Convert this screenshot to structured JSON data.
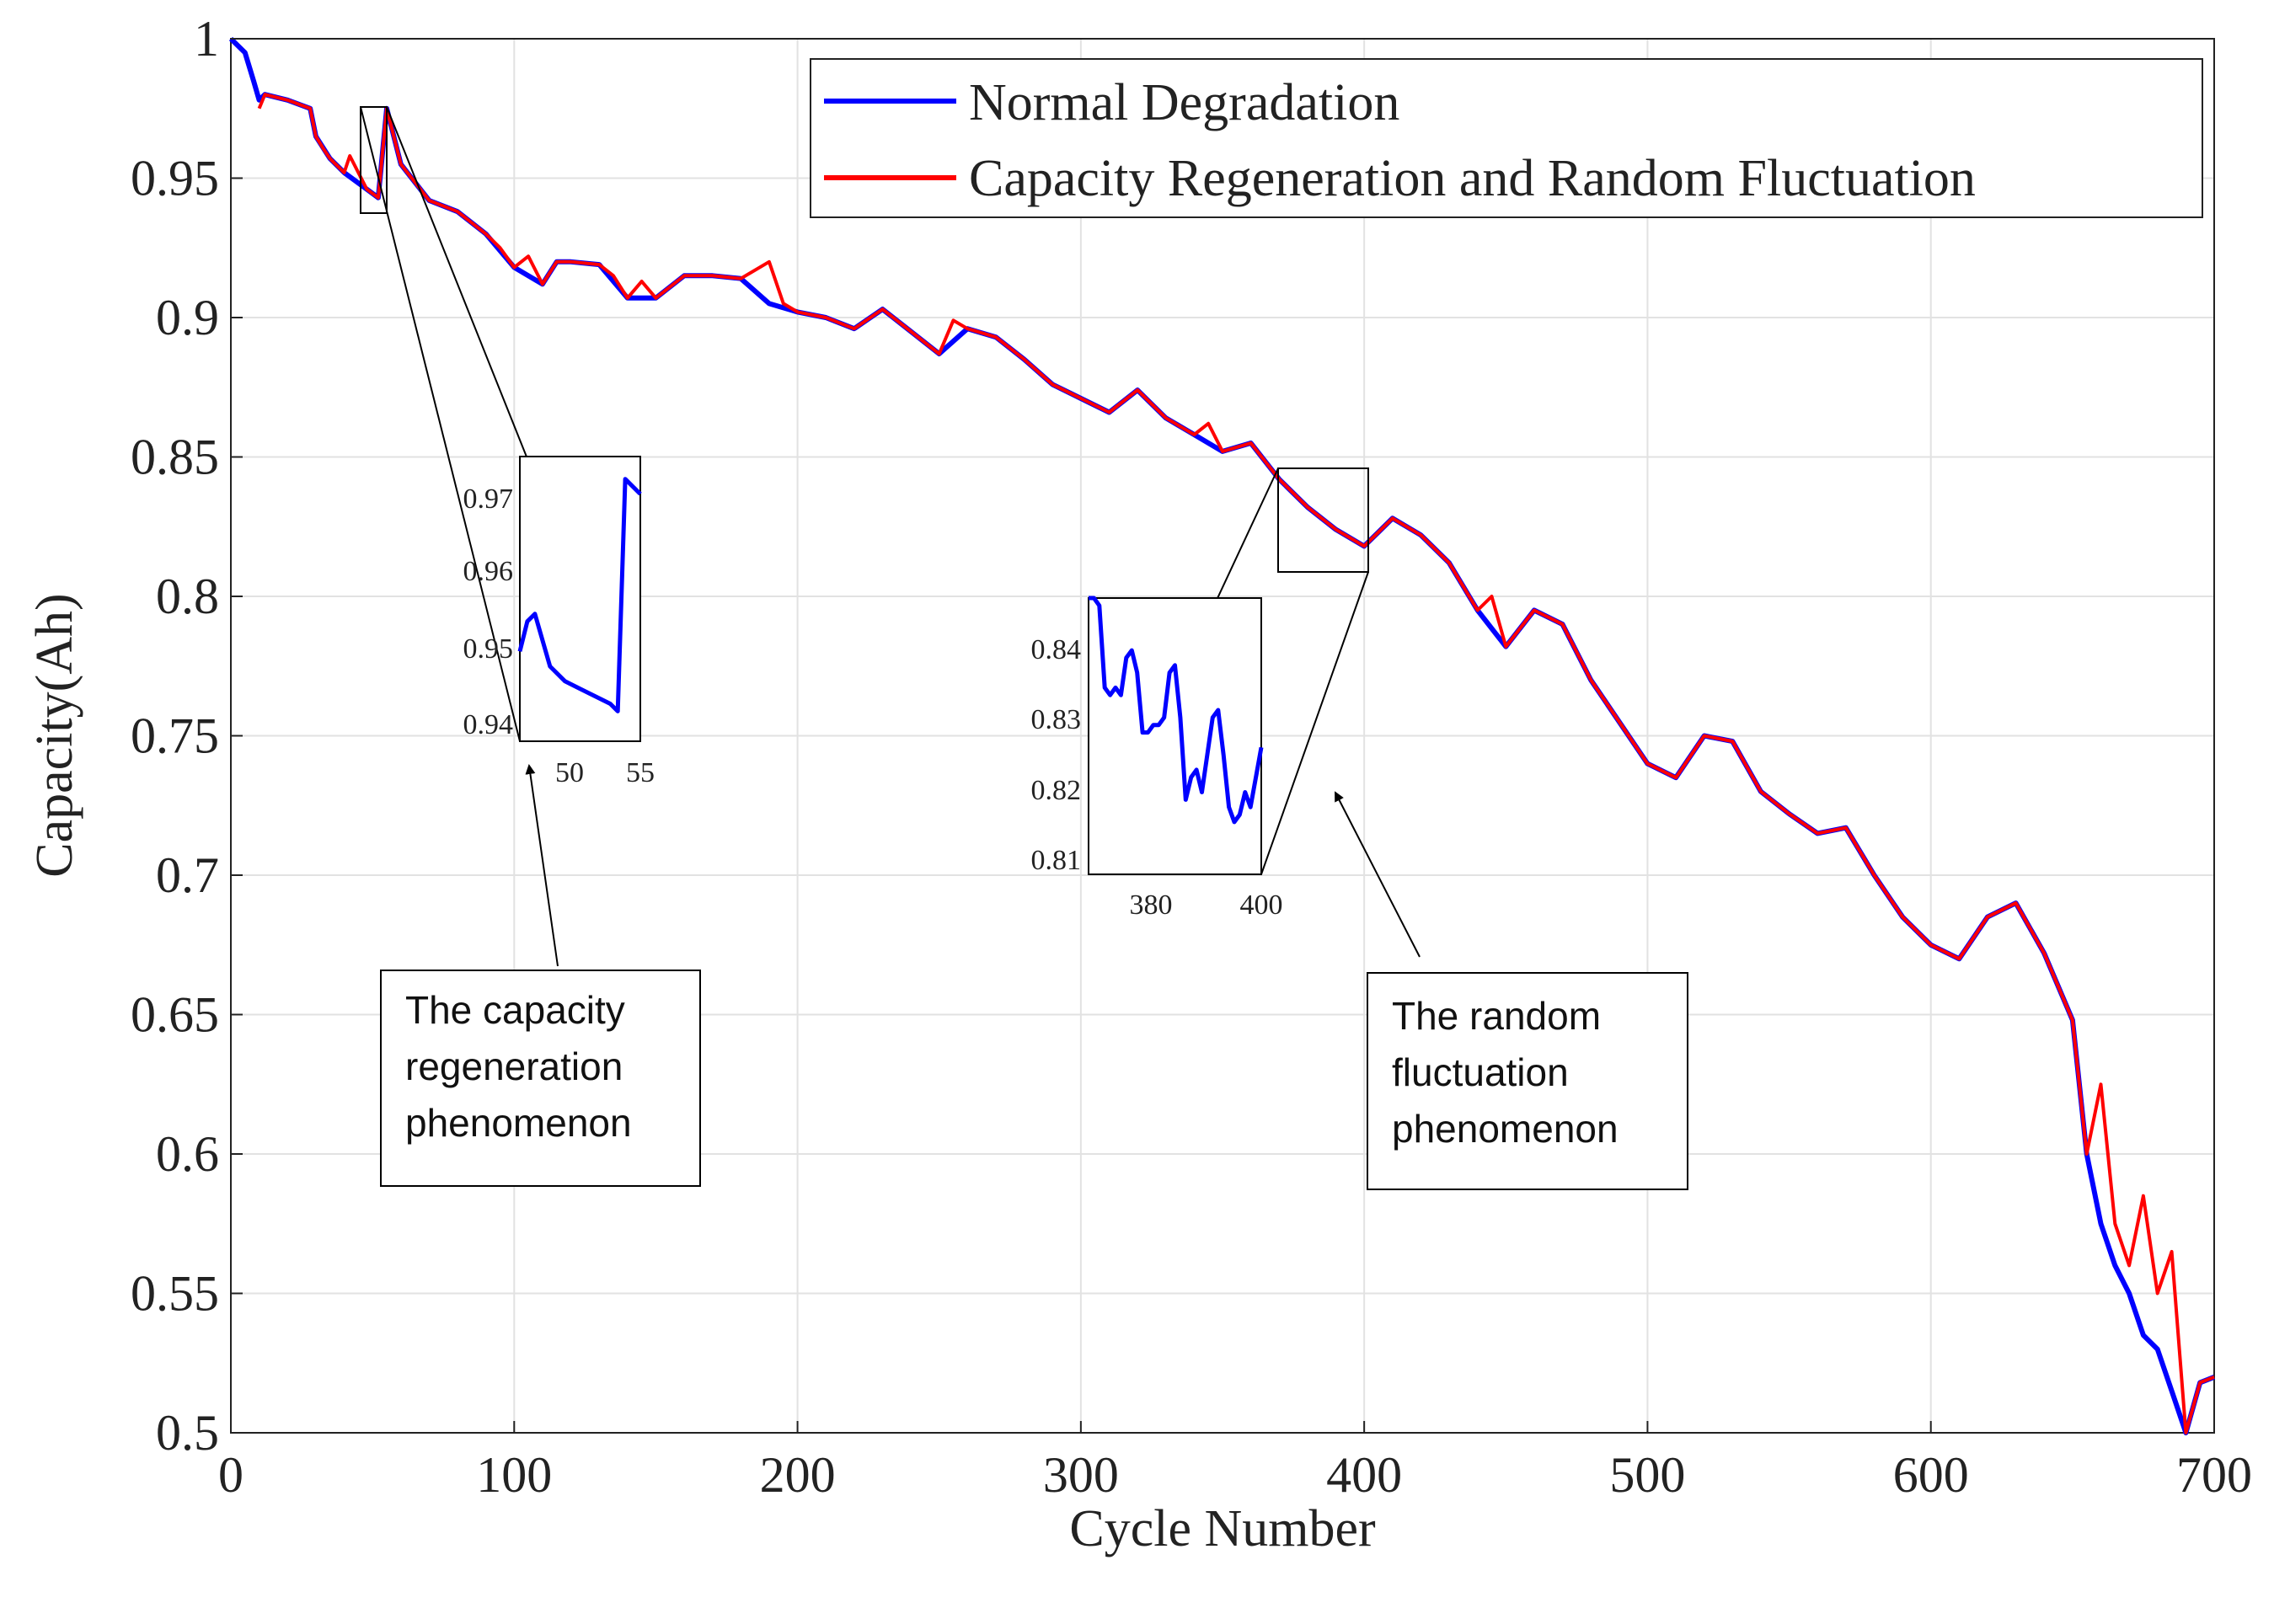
{
  "chart_data": {
    "type": "line",
    "title": "",
    "xlabel": "Cycle Number",
    "ylabel": "Capacity(Ah)",
    "xlim": [
      0,
      700
    ],
    "ylim": [
      0.5,
      1.0
    ],
    "grid": true,
    "legend_position": "top-right",
    "x_ticks": [
      0,
      100,
      200,
      300,
      400,
      500,
      600,
      700
    ],
    "y_ticks": [
      0.5,
      0.55,
      0.6,
      0.65,
      0.7,
      0.75,
      0.8,
      0.85,
      0.9,
      0.95,
      1.0
    ],
    "x_tick_labels": [
      "0",
      "100",
      "200",
      "300",
      "400",
      "500",
      "600",
      "700"
    ],
    "y_tick_labels": [
      "0.5",
      "0.55",
      "0.6",
      "0.65",
      "0.7",
      "0.75",
      "0.8",
      "0.85",
      "0.9",
      "0.95",
      "1"
    ],
    "series": [
      {
        "name": "Normal Degradation",
        "color": "#0000ff",
        "x": [
          0,
          5,
          8,
          10,
          12,
          20,
          28,
          30,
          35,
          40,
          48,
          52,
          55,
          60,
          70,
          80,
          90,
          100,
          110,
          115,
          120,
          130,
          140,
          150,
          160,
          170,
          180,
          190,
          200,
          210,
          220,
          230,
          240,
          250,
          260,
          270,
          280,
          290,
          300,
          310,
          320,
          330,
          340,
          350,
          360,
          370,
          380,
          390,
          400,
          410,
          420,
          430,
          440,
          450,
          460,
          470,
          480,
          490,
          500,
          510,
          520,
          530,
          540,
          550,
          560,
          570,
          580,
          590,
          600,
          610,
          620,
          630,
          640,
          650,
          655,
          660,
          665,
          670,
          675,
          680,
          685,
          690,
          695,
          700
        ],
        "y": [
          1.0,
          0.995,
          0.985,
          0.978,
          0.98,
          0.978,
          0.975,
          0.965,
          0.957,
          0.952,
          0.946,
          0.943,
          0.975,
          0.955,
          0.942,
          0.938,
          0.93,
          0.918,
          0.912,
          0.92,
          0.92,
          0.919,
          0.907,
          0.907,
          0.915,
          0.915,
          0.914,
          0.905,
          0.902,
          0.9,
          0.896,
          0.903,
          0.895,
          0.887,
          0.896,
          0.893,
          0.885,
          0.876,
          0.871,
          0.866,
          0.874,
          0.864,
          0.858,
          0.852,
          0.855,
          0.842,
          0.832,
          0.824,
          0.818,
          0.828,
          0.822,
          0.812,
          0.795,
          0.782,
          0.795,
          0.79,
          0.77,
          0.755,
          0.74,
          0.735,
          0.75,
          0.748,
          0.73,
          0.722,
          0.715,
          0.717,
          0.7,
          0.685,
          0.675,
          0.67,
          0.685,
          0.69,
          0.672,
          0.648,
          0.6,
          0.575,
          0.56,
          0.55,
          0.535,
          0.53,
          0.515,
          0.5,
          0.518,
          0.52
        ]
      },
      {
        "name": "Capacity Regeneration and Random Fluctuation",
        "color": "#ff0000",
        "x": [
          10,
          12,
          20,
          28,
          30,
          33,
          35,
          40,
          42,
          48,
          52,
          55,
          60,
          70,
          80,
          90,
          95,
          100,
          105,
          110,
          115,
          120,
          130,
          135,
          140,
          145,
          150,
          160,
          170,
          180,
          190,
          195,
          200,
          210,
          220,
          230,
          240,
          250,
          255,
          260,
          270,
          280,
          290,
          300,
          310,
          320,
          330,
          340,
          345,
          350,
          360,
          370,
          380,
          390,
          400,
          410,
          420,
          430,
          440,
          445,
          450,
          460,
          470,
          475,
          480,
          490,
          500,
          510,
          520,
          530,
          540,
          550,
          560,
          570,
          580,
          590,
          600,
          610,
          620,
          630,
          640,
          650,
          655,
          660,
          665,
          670,
          675,
          680,
          685,
          690,
          695,
          700
        ],
        "y": [
          0.975,
          0.98,
          0.978,
          0.975,
          0.965,
          0.96,
          0.957,
          0.952,
          0.958,
          0.946,
          0.943,
          0.975,
          0.955,
          0.942,
          0.938,
          0.93,
          0.925,
          0.918,
          0.922,
          0.912,
          0.92,
          0.92,
          0.919,
          0.915,
          0.907,
          0.913,
          0.907,
          0.915,
          0.915,
          0.914,
          0.92,
          0.905,
          0.902,
          0.9,
          0.896,
          0.903,
          0.895,
          0.887,
          0.899,
          0.896,
          0.893,
          0.885,
          0.876,
          0.871,
          0.866,
          0.874,
          0.864,
          0.858,
          0.862,
          0.852,
          0.855,
          0.842,
          0.832,
          0.824,
          0.818,
          0.828,
          0.822,
          0.812,
          0.795,
          0.8,
          0.782,
          0.795,
          0.79,
          0.78,
          0.77,
          0.755,
          0.74,
          0.735,
          0.75,
          0.748,
          0.73,
          0.722,
          0.715,
          0.717,
          0.7,
          0.685,
          0.675,
          0.67,
          0.685,
          0.69,
          0.672,
          0.648,
          0.6,
          0.625,
          0.575,
          0.56,
          0.585,
          0.55,
          0.565,
          0.5,
          0.518,
          0.52
        ]
      }
    ],
    "insets": [
      {
        "name": "regeneration-zoom",
        "x_ticks": [
          50,
          55
        ],
        "x_tick_labels": [
          "50",
          "55"
        ],
        "y_tick_labels": [
          "0.97",
          "0.96",
          "0.95",
          "0.94"
        ],
        "xlim": [
          47,
          55
        ],
        "ylim": [
          0.938,
          0.976
        ],
        "x": [
          47,
          47.5,
          48,
          49,
          50,
          51,
          52,
          53,
          53.5,
          54,
          55
        ],
        "y": [
          0.95,
          0.954,
          0.955,
          0.948,
          0.946,
          0.945,
          0.944,
          0.943,
          0.942,
          0.973,
          0.971
        ]
      },
      {
        "name": "fluctuation-zoom",
        "x_ticks": [
          380,
          400
        ],
        "x_tick_labels": [
          "380",
          "400"
        ],
        "y_tick_labels": [
          "0.84",
          "0.83",
          "0.82",
          "0.81"
        ],
        "xlim": [
          368,
          400
        ],
        "ylim": [
          0.809,
          0.846
        ],
        "x": [
          368,
          369,
          370,
          371,
          372,
          373,
          374,
          375,
          376,
          377,
          378,
          379,
          380,
          381,
          382,
          383,
          384,
          385,
          386,
          387,
          388,
          389,
          390,
          391,
          392,
          393,
          394,
          395,
          396,
          397,
          398,
          399,
          400
        ],
        "y": [
          0.846,
          0.846,
          0.845,
          0.834,
          0.833,
          0.834,
          0.833,
          0.838,
          0.839,
          0.836,
          0.828,
          0.828,
          0.829,
          0.829,
          0.83,
          0.836,
          0.837,
          0.83,
          0.819,
          0.822,
          0.823,
          0.82,
          0.825,
          0.83,
          0.831,
          0.825,
          0.818,
          0.816,
          0.817,
          0.82,
          0.818,
          0.822,
          0.826
        ]
      }
    ],
    "annotations": [
      {
        "name": "regeneration-note",
        "lines": [
          "The capacity",
          "regeneration",
          "phenomenon"
        ]
      },
      {
        "name": "fluctuation-note",
        "lines": [
          "The random",
          "fluctuation",
          "phenomenon"
        ]
      }
    ]
  }
}
